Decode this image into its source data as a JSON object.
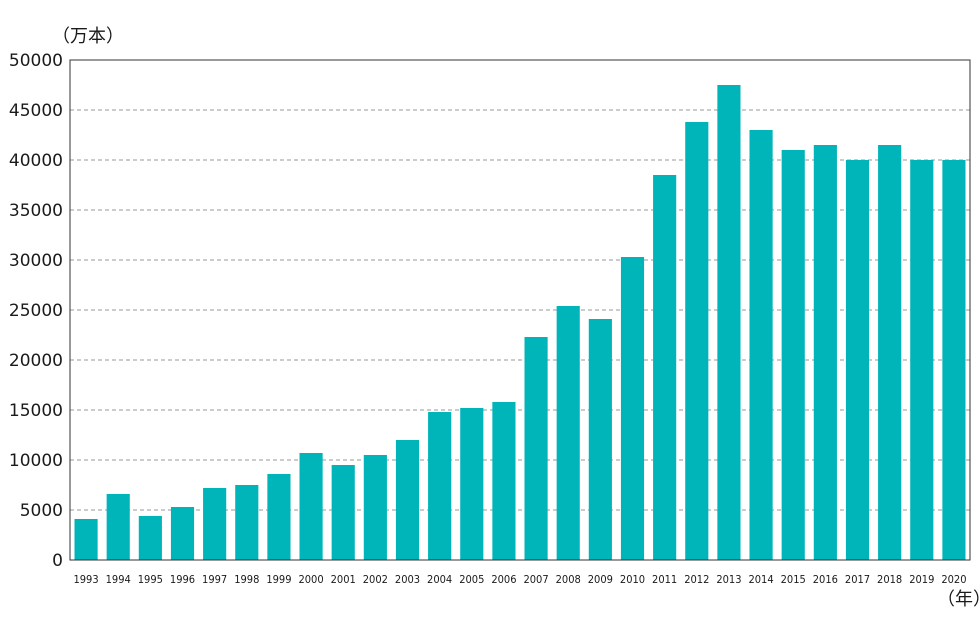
{
  "chart_data": {
    "type": "bar",
    "y_unit_label": "（万本）",
    "x_unit_label": "（年）",
    "categories": [
      "1993",
      "1994",
      "1995",
      "1996",
      "1997",
      "1998",
      "1999",
      "2000",
      "2001",
      "2002",
      "2003",
      "2004",
      "2005",
      "2006",
      "2007",
      "2008",
      "2009",
      "2010",
      "2011",
      "2012",
      "2013",
      "2014",
      "2015",
      "2016",
      "2017",
      "2018",
      "2019",
      "2020"
    ],
    "values": [
      4100,
      6600,
      4400,
      5300,
      7200,
      7500,
      8600,
      10700,
      9500,
      10500,
      12000,
      14800,
      15200,
      15800,
      22300,
      25400,
      24100,
      30300,
      38500,
      43800,
      47500,
      43000,
      41000,
      41500,
      40000,
      41500,
      40000,
      40000
    ],
    "ylim": [
      0,
      50000
    ],
    "y_ticks": [
      0,
      5000,
      10000,
      15000,
      20000,
      25000,
      30000,
      35000,
      40000,
      45000,
      50000
    ],
    "grid": "horizontal dashed",
    "colors": {
      "bar": "#00b5ba",
      "grid": "#9a9a9a",
      "axis": "#333333"
    }
  }
}
